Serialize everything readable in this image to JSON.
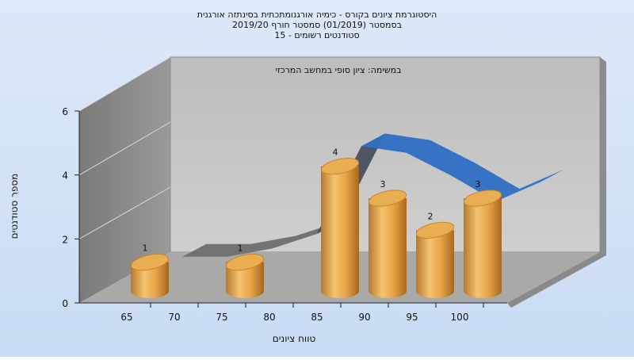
{
  "chart_data": {
    "type": "bar",
    "title_lines": [
      "היסטוגרמת ציונים בקורס - כימיה אורגנומתכתית בסינתזה אורגנית",
      "בסמסטר  (01/2019)  סמסטר חורף 2019/20",
      "סטודנטים רשומים - 15"
    ],
    "subtitle": "במשימה: ציון סופי במחשב המרכזי",
    "xlabel": "טווח ציונים",
    "ylabel": "מספר סטודנטים",
    "x_ticks": [
      "65",
      "70",
      "75",
      "80",
      "85",
      "90",
      "95",
      "100"
    ],
    "y_ticks": [
      0,
      2,
      4,
      6
    ],
    "ylim": [
      0,
      6
    ],
    "categories": [
      "65",
      "75",
      "85",
      "90",
      "95",
      "100"
    ],
    "values": [
      1,
      1,
      4,
      3,
      2,
      3
    ],
    "trend_values": [
      0.2,
      0.2,
      0.45,
      0.9,
      3.6,
      3.4,
      2.7,
      1.9,
      2.5
    ],
    "colors": {
      "bar": "#e0a040",
      "bar_dark": "#b07020",
      "trend": "#2f6fc4",
      "trend_back": "#6e6e6e",
      "back_wall": "#c4c4c4",
      "side_wall": "#8f8f8f",
      "floor": "#a6a6a6"
    }
  }
}
